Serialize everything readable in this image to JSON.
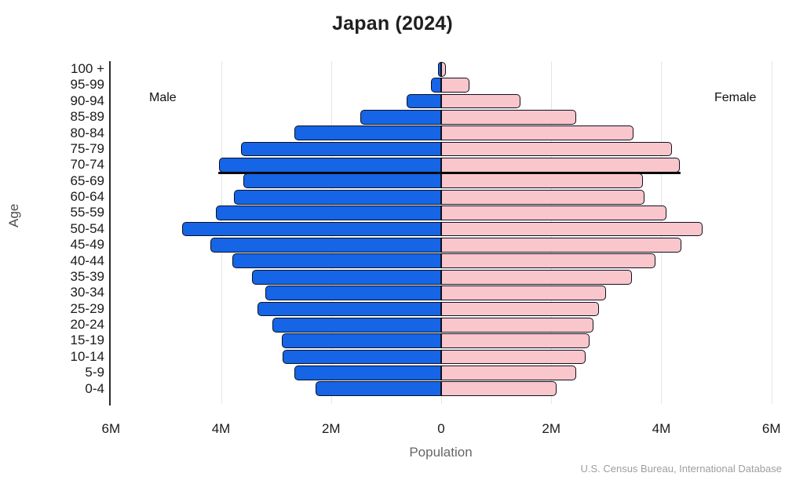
{
  "header": {
    "title": "Japan (2024)"
  },
  "labels": {
    "male": "Male",
    "female": "Female",
    "age_axis": "Age",
    "population_axis": "Population"
  },
  "source": "U.S. Census Bureau, International Database",
  "colors": {
    "male_bar": "#1565e6",
    "female_bar": "#f9c6cc",
    "bar_border": "#10101e",
    "gridline": "#e6e6e6",
    "reference_line": "#0a0a0a",
    "axis_text": "#1a1a1a",
    "muted_text": "#666666",
    "source_text": "#9e9e9e"
  },
  "chart_data": {
    "type": "bar",
    "subtype": "population-pyramid",
    "title": "Japan (2024)",
    "xlabel": "Population",
    "ylabel": "Age",
    "units": "millions of people",
    "grid": true,
    "axis_max_each_side": 6,
    "x_ticks": [
      {
        "label": "6M",
        "value": -6
      },
      {
        "label": "4M",
        "value": -4
      },
      {
        "label": "2M",
        "value": -2
      },
      {
        "label": "0",
        "value": 0
      },
      {
        "label": "2M",
        "value": 2
      },
      {
        "label": "4M",
        "value": 4
      },
      {
        "label": "6M",
        "value": 6
      }
    ],
    "categories_top_to_bottom": [
      "100 +",
      "95-99",
      "90-94",
      "85-89",
      "80-84",
      "75-79",
      "70-74",
      "65-69",
      "60-64",
      "55-59",
      "50-54",
      "45-49",
      "40-44",
      "35-39",
      "30-34",
      "25-29",
      "20-24",
      "15-19",
      "10-14",
      "5-9",
      "0-4"
    ],
    "series": [
      {
        "name": "Male",
        "side": "left",
        "values_top_to_bottom": [
          0.05,
          0.19,
          0.63,
          1.47,
          2.66,
          3.63,
          4.03,
          3.6,
          3.76,
          4.1,
          4.7,
          4.2,
          3.8,
          3.44,
          3.19,
          3.34,
          3.06,
          2.9,
          2.88,
          2.66,
          2.28
        ]
      },
      {
        "name": "Female",
        "side": "right",
        "values_top_to_bottom": [
          0.09,
          0.51,
          1.44,
          2.46,
          3.49,
          4.2,
          4.33,
          3.67,
          3.7,
          4.1,
          4.75,
          4.37,
          3.89,
          3.47,
          3.0,
          2.86,
          2.76,
          2.7,
          2.63,
          2.45,
          2.09
        ]
      }
    ],
    "annotation_line": {
      "below_category": "70-74"
    }
  }
}
